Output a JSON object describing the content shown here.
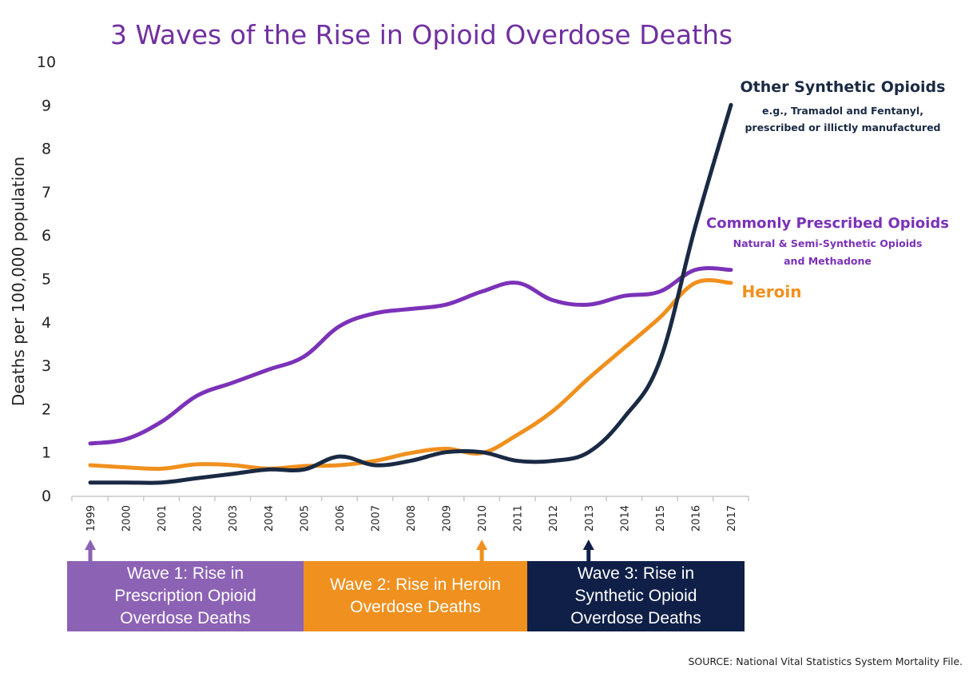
{
  "title": "3 Waves of the Rise in Opioid Overdose Deaths",
  "source": "SOURCE: National Vital Statistics System Mortality File.",
  "colors": {
    "synthetic": "#1a2a44",
    "prescribed": "#7b32b8",
    "heroin": "#f0901e",
    "wave1": "#8c62b5",
    "wave2": "#f0901e",
    "wave3": "#0f1f47",
    "title": "#7030a0"
  },
  "waves": [
    {
      "line1": "Wave 1: Rise in",
      "line2": "Prescription Opioid",
      "line3": "Overdose Deaths",
      "marker_year": "1999"
    },
    {
      "line1": "Wave 2: Rise in Heroin",
      "line2": "Overdose Deaths",
      "line3": "",
      "marker_year": "2010"
    },
    {
      "line1": "Wave 3: Rise in",
      "line2": "Synthetic Opioid",
      "line3": "Overdose Deaths",
      "marker_year": "2013"
    }
  ],
  "chart_data": {
    "type": "line",
    "title": "3 Waves of the Rise in Opioid Overdose Deaths",
    "xlabel": "",
    "ylabel": "Deaths per 100,000 population",
    "ylim": [
      0,
      10
    ],
    "yticks": [
      "0",
      "1",
      "2",
      "3",
      "4",
      "5",
      "6",
      "7",
      "8",
      "9",
      "10"
    ],
    "grid": false,
    "legend": "direct labels at right end of lines",
    "x": [
      "1999",
      "2000",
      "2001",
      "2002",
      "2003",
      "2004",
      "2005",
      "2006",
      "2007",
      "2008",
      "2009",
      "2010",
      "2011",
      "2012",
      "2013",
      "2014",
      "2015",
      "2016",
      "2017"
    ],
    "series": [
      {
        "name": "Other Synthetic Opioids",
        "subtitle1": "e.g., Tramadol and Fentanyl,",
        "subtitle2": "prescribed or illictly manufactured",
        "color": "#1a2a44",
        "values": [
          0.3,
          0.3,
          0.3,
          0.4,
          0.5,
          0.6,
          0.6,
          0.9,
          0.7,
          0.8,
          1.0,
          1.0,
          0.8,
          0.8,
          1.0,
          1.8,
          3.1,
          6.2,
          9.0
        ]
      },
      {
        "name": "Commonly Prescribed Opioids",
        "subtitle1": "Natural & Semi-Synthetic Opioids",
        "subtitle2": "and Methadone",
        "color": "#7b32b8",
        "values": [
          1.2,
          1.3,
          1.7,
          2.3,
          2.6,
          2.9,
          3.2,
          3.9,
          4.2,
          4.3,
          4.4,
          4.7,
          4.9,
          4.5,
          4.4,
          4.6,
          4.7,
          5.2,
          5.2
        ]
      },
      {
        "name": "Heroin",
        "subtitle1": "",
        "subtitle2": "",
        "color": "#f0901e",
        "values": [
          0.7,
          0.65,
          0.62,
          0.72,
          0.7,
          0.62,
          0.68,
          0.7,
          0.8,
          0.98,
          1.08,
          0.98,
          1.4,
          1.95,
          2.7,
          3.4,
          4.1,
          4.9,
          4.9
        ]
      }
    ]
  }
}
